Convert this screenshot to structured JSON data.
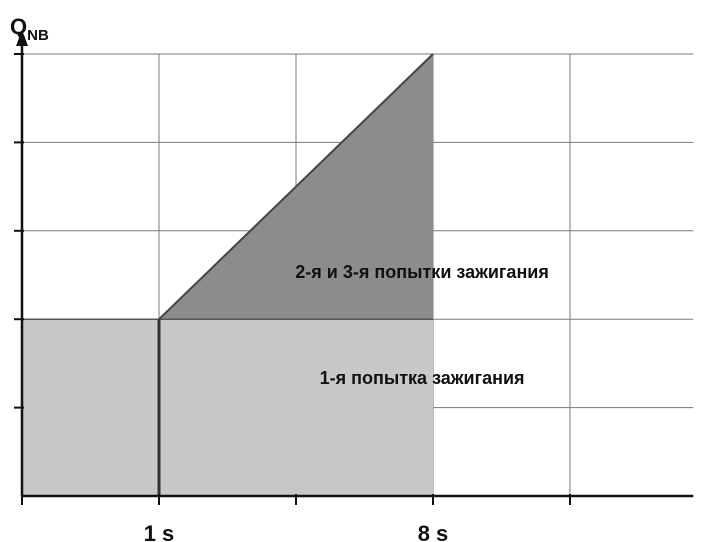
{
  "chart_data": {
    "type": "area",
    "title": "",
    "ylabel_main": "Q",
    "ylabel_sub": "NB",
    "xlabel": "",
    "x_ticks": [
      0,
      1,
      2,
      3,
      4
    ],
    "x_tick_labels": [
      "",
      "1 s",
      "",
      "8 s",
      ""
    ],
    "xlim": [
      0,
      4.9
    ],
    "y_gridlines": [
      1,
      2,
      3,
      4,
      5
    ],
    "ylim": [
      0,
      5
    ],
    "grid": true,
    "series": [
      {
        "name": "1-я попытка зажигания",
        "kind": "lower-area",
        "points": [
          [
            0,
            2
          ],
          [
            1,
            2
          ],
          [
            3,
            2
          ]
        ],
        "color": "#c8c8c8"
      },
      {
        "name": "2-я и 3-я попытки зажигания",
        "kind": "upper-area",
        "points": [
          [
            1,
            2
          ],
          [
            3,
            5
          ]
        ],
        "color": "#8c8c8c"
      }
    ],
    "annotations": [
      {
        "text": "2-я и 3-я попытки зажигания",
        "x": 2.3,
        "y": 2.5
      },
      {
        "text": "1-я попытка зажигания",
        "x": 2.3,
        "y": 1.3
      }
    ]
  }
}
